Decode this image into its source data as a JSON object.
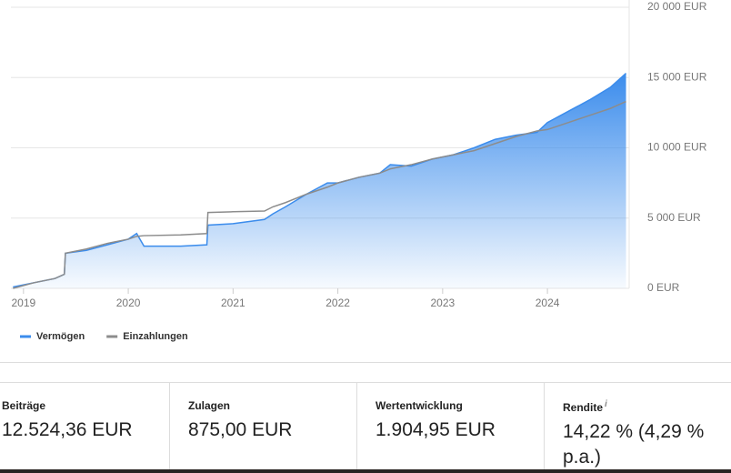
{
  "chart_data": {
    "type": "area",
    "x": [
      2018.9,
      2019.1,
      2019.3,
      2019.39,
      2019.4,
      2019.6,
      2019.8,
      2020.0,
      2020.08,
      2020.15,
      2020.5,
      2020.75,
      2020.76,
      2021.0,
      2021.3,
      2021.38,
      2021.5,
      2021.7,
      2021.9,
      2022.0,
      2022.2,
      2022.4,
      2022.5,
      2022.7,
      2022.9,
      2023.1,
      2023.3,
      2023.5,
      2023.7,
      2023.9,
      2024.0,
      2024.2,
      2024.4,
      2024.6,
      2024.75
    ],
    "series": [
      {
        "name": "Vermögen",
        "color": "#3b8cec",
        "values": [
          100,
          400,
          700,
          1000,
          2500,
          2700,
          3100,
          3500,
          3900,
          3000,
          3000,
          3100,
          4500,
          4600,
          4900,
          5300,
          5800,
          6700,
          7500,
          7500,
          7900,
          8200,
          8800,
          8700,
          9200,
          9500,
          10000,
          10600,
          10900,
          11100,
          11800,
          12600,
          13400,
          14300,
          15300
        ]
      },
      {
        "name": "Einzahlungen",
        "color": "#8c8c8c",
        "values": [
          0,
          400,
          700,
          1000,
          2500,
          2800,
          3200,
          3500,
          3700,
          3750,
          3800,
          3900,
          5400,
          5450,
          5500,
          5800,
          6100,
          6700,
          7200,
          7500,
          7900,
          8200,
          8500,
          8800,
          9200,
          9500,
          9800,
          10300,
          10800,
          11200,
          11300,
          11800,
          12300,
          12800,
          13300
        ]
      }
    ],
    "xlim": [
      2018.88,
      2024.78
    ],
    "xticks": [
      2019,
      2020,
      2021,
      2022,
      2023,
      2024
    ],
    "ylim": [
      0,
      20000
    ],
    "yticks": [
      {
        "value": 0,
        "label": "0 EUR"
      },
      {
        "value": 5000,
        "label": "5 000 EUR"
      },
      {
        "value": 10000,
        "label": "10 000 EUR"
      },
      {
        "value": 15000,
        "label": "15 000 EUR"
      },
      {
        "value": 20000,
        "label": "20 000 EUR"
      }
    ],
    "grid": true
  },
  "stats": [
    {
      "label": "Beiträge",
      "value": "12.524,36 EUR"
    },
    {
      "label": "Zulagen",
      "value": "875,00 EUR"
    },
    {
      "label": "Wertentwicklung",
      "value": "1.904,95 EUR"
    },
    {
      "label": "Rendite",
      "info": "i",
      "value": "14,22 % (4,29 % p.a.)"
    }
  ]
}
